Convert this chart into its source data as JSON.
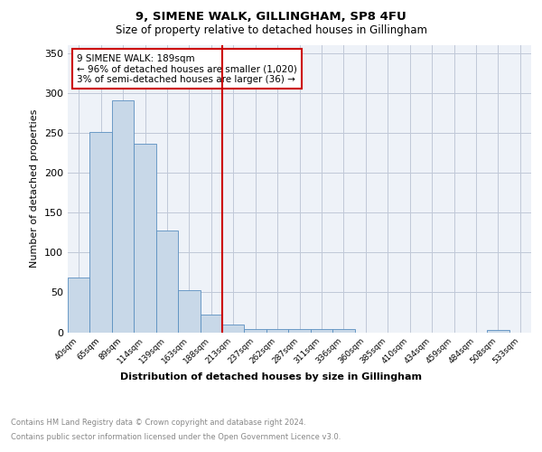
{
  "title1": "9, SIMENE WALK, GILLINGHAM, SP8 4FU",
  "title2": "Size of property relative to detached houses in Gillingham",
  "xlabel": "Distribution of detached houses by size in Gillingham",
  "ylabel": "Number of detached properties",
  "categories": [
    "40sqm",
    "65sqm",
    "89sqm",
    "114sqm",
    "139sqm",
    "163sqm",
    "188sqm",
    "213sqm",
    "237sqm",
    "262sqm",
    "287sqm",
    "311sqm",
    "336sqm",
    "360sqm",
    "385sqm",
    "410sqm",
    "434sqm",
    "459sqm",
    "484sqm",
    "508sqm",
    "533sqm"
  ],
  "values": [
    69,
    251,
    291,
    236,
    127,
    53,
    22,
    10,
    4,
    4,
    4,
    4,
    4,
    0,
    0,
    0,
    0,
    0,
    0,
    3,
    0
  ],
  "bar_color": "#c8d8e8",
  "bar_edge_color": "#5a8fc0",
  "vline_x_index": 6.5,
  "vline_color": "#cc0000",
  "annotation_text": "9 SIMENE WALK: 189sqm\n← 96% of detached houses are smaller (1,020)\n3% of semi-detached houses are larger (36) →",
  "annotation_box_color": "white",
  "annotation_box_edge": "#cc0000",
  "grid_color": "#c0c8d8",
  "background_color": "#eef2f8",
  "footer_line1": "Contains HM Land Registry data © Crown copyright and database right 2024.",
  "footer_line2": "Contains public sector information licensed under the Open Government Licence v3.0.",
  "ylim": [
    0,
    360
  ],
  "yticks": [
    0,
    50,
    100,
    150,
    200,
    250,
    300,
    350
  ]
}
